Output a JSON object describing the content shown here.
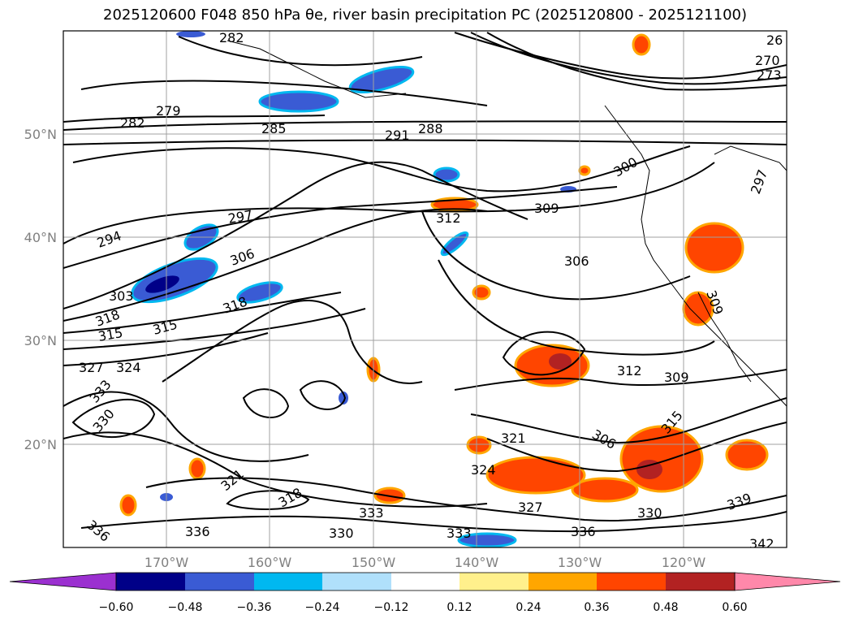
{
  "title": "2025120600 F048 850 hPa θe, river basin precipitation PC (2025120800 - 2025121100)",
  "lat_labels": [
    "50°N",
    "40°N",
    "30°N",
    "20°N"
  ],
  "lon_labels": [
    "170°W",
    "160°W",
    "150°W",
    "140°W",
    "130°W",
    "120°W"
  ],
  "contour_labels": [
    "282",
    "279",
    "282",
    "285",
    "291",
    "288",
    "294",
    "297",
    "300",
    "309",
    "312",
    "306",
    "303",
    "318",
    "306",
    "315",
    "318",
    "315",
    "327",
    "324",
    "333",
    "330",
    "312",
    "309",
    "321",
    "324",
    "306",
    "315",
    "321",
    "318",
    "333",
    "327",
    "330",
    "336",
    "336",
    "330",
    "333",
    "336",
    "339",
    "342",
    "270",
    "273",
    "26",
    "297",
    "309"
  ],
  "colorbar": {
    "labels": [
      "−0.60",
      "−0.48",
      "−0.36",
      "−0.24",
      "−0.12",
      "0.12",
      "0.24",
      "0.36",
      "0.48",
      "0.60"
    ],
    "colors": [
      "#9b30d0",
      "#000088",
      "#3a5bd4",
      "#00b8f0",
      "#b0e0fb",
      "#ffffff",
      "#fff08c",
      "#ffa600",
      "#ff4500",
      "#b22222",
      "#ff88aa"
    ]
  },
  "colors": {
    "frame": "#000000",
    "grid": "#808080",
    "warm": "#ff4500",
    "cool": "#3a5bd4"
  }
}
